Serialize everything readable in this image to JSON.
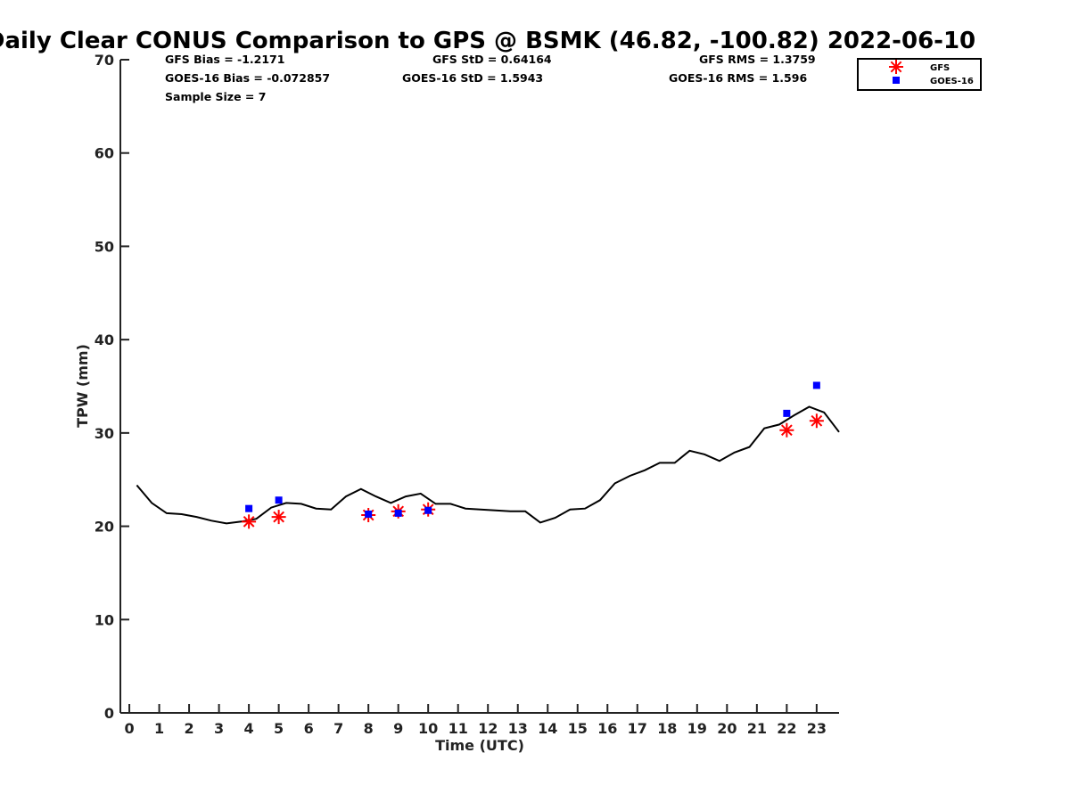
{
  "chart_data": {
    "type": "scatter",
    "title": "Daily Clear CONUS Comparison to GPS @ BSMK (46.82, -100.82) 2022-06-10",
    "xlabel": "Time (UTC)",
    "ylabel": "TPW (mm)",
    "xlim": [
      -0.3,
      23.75
    ],
    "ylim": [
      0,
      70
    ],
    "xticks": [
      0,
      1,
      2,
      3,
      4,
      5,
      6,
      7,
      8,
      9,
      10,
      11,
      12,
      13,
      14,
      15,
      16,
      17,
      18,
      19,
      20,
      21,
      22,
      23
    ],
    "yticks": [
      0,
      10,
      20,
      30,
      40,
      50,
      60,
      70
    ],
    "grid": false,
    "legend_position": "top-right",
    "stats": [
      "GFS Bias = -1.2171",
      "GFS StD = 0.64164",
      "GFS RMS = 1.3759",
      "GOES-16 Bias = -0.072857",
      "GOES-16 StD = 1.5943",
      "GOES-16 RMS = 1.596",
      "Sample Size = 7"
    ],
    "legend": [
      "GFS",
      "GOES-16"
    ],
    "series": [
      {
        "name": "GPS",
        "kind": "line",
        "color": "#000000",
        "x": [
          0.25,
          0.75,
          1.25,
          1.75,
          2.25,
          2.75,
          3.25,
          3.75,
          4.25,
          4.75,
          5.25,
          5.75,
          6.25,
          6.75,
          7.25,
          7.75,
          8.25,
          8.75,
          9.25,
          9.75,
          10.25,
          10.75,
          11.25,
          11.75,
          12.25,
          12.75,
          13.25,
          13.75,
          14.25,
          14.75,
          15.25,
          15.75,
          16.25,
          16.75,
          17.25,
          17.75,
          18.25,
          18.75,
          19.25,
          19.75,
          20.25,
          20.75,
          21.25,
          21.75,
          22.25,
          22.75,
          23.25,
          23.75
        ],
        "y": [
          24.4,
          22.5,
          21.4,
          21.3,
          21.0,
          20.6,
          20.3,
          20.5,
          20.8,
          22.0,
          22.5,
          22.4,
          21.9,
          21.8,
          23.2,
          24.0,
          23.2,
          22.5,
          23.2,
          23.5,
          22.4,
          22.4,
          21.9,
          21.8,
          21.7,
          21.6,
          21.6,
          20.4,
          20.9,
          21.8,
          21.9,
          22.8,
          24.6,
          25.4,
          26.0,
          26.8,
          26.8,
          28.1,
          27.7,
          27.0,
          27.9,
          28.5,
          30.5,
          30.9,
          31.9,
          32.8,
          32.2,
          30.1
        ]
      },
      {
        "name": "GFS",
        "kind": "marker",
        "marker": "asterisk",
        "color": "#ff0000",
        "x": [
          4,
          5,
          8,
          9,
          10,
          22,
          23
        ],
        "y": [
          20.5,
          21.0,
          21.2,
          21.6,
          21.8,
          30.3,
          31.3
        ]
      },
      {
        "name": "GOES-16",
        "kind": "marker",
        "marker": "square",
        "color": "#0000ff",
        "x": [
          4,
          5,
          8,
          9,
          10,
          22,
          23
        ],
        "y": [
          21.9,
          22.8,
          21.3,
          21.4,
          21.7,
          32.1,
          35.1
        ]
      }
    ]
  }
}
